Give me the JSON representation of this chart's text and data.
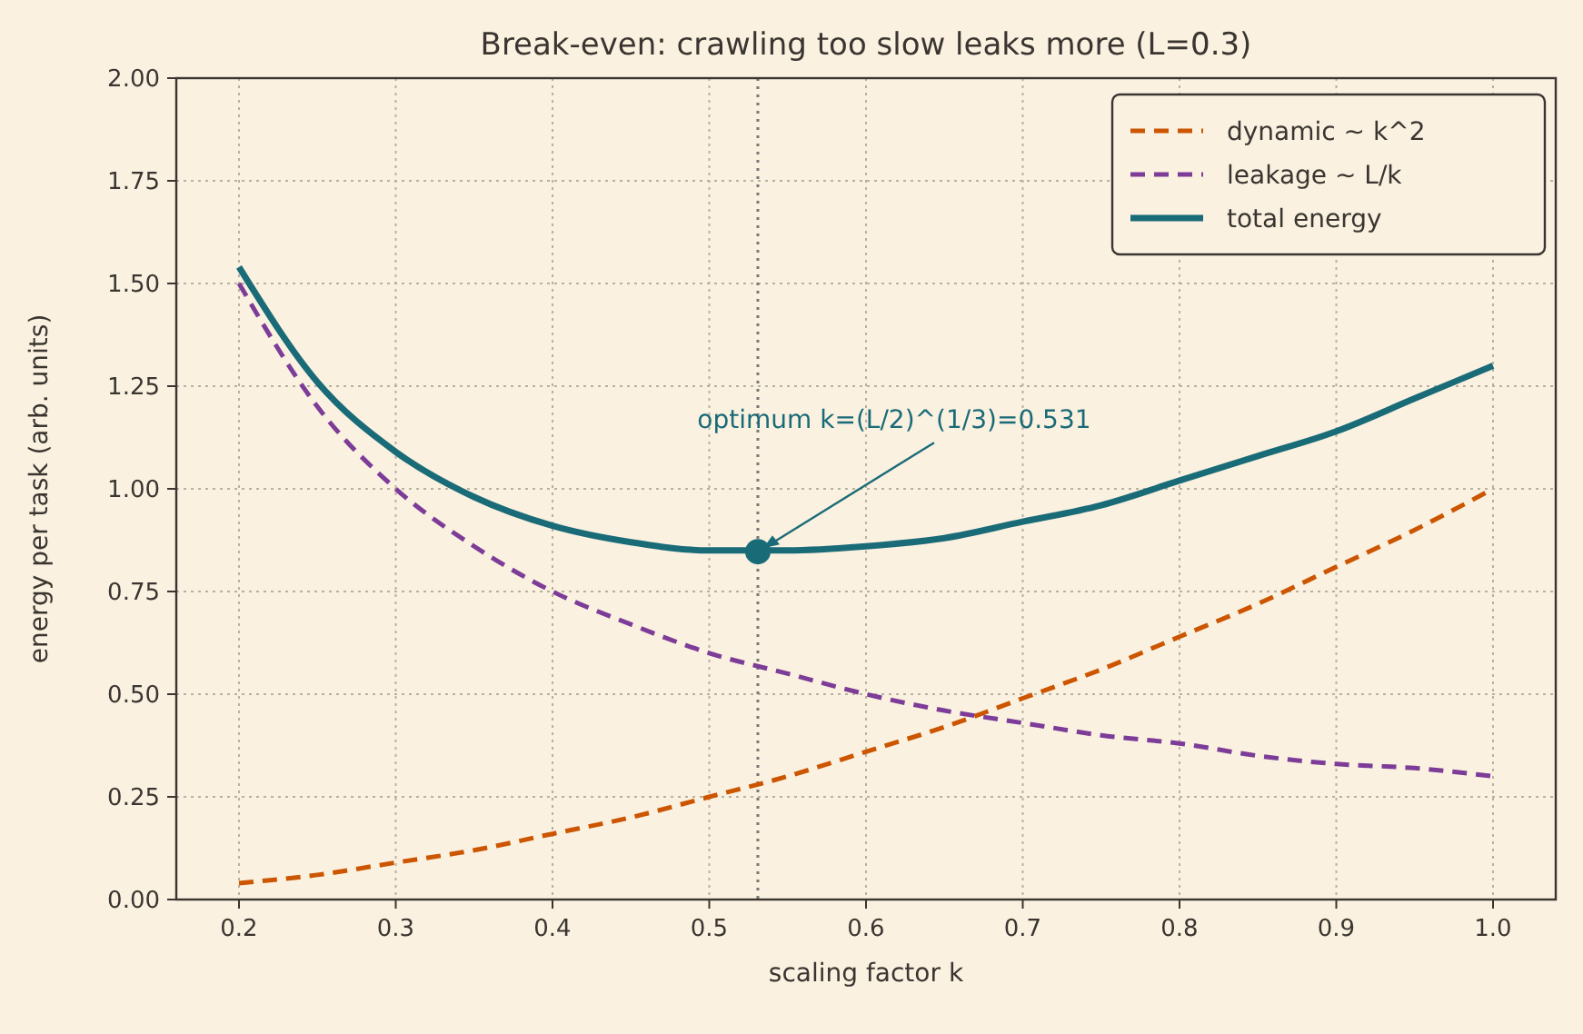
{
  "chart_data": {
    "type": "line",
    "title": "Break-even: crawling too slow leaks more (L=0.3)",
    "xlabel": "scaling factor  k",
    "ylabel": "energy per task (arb. units)",
    "x": [
      0.2,
      0.25,
      0.3,
      0.35,
      0.4,
      0.45,
      0.5,
      0.55,
      0.6,
      0.65,
      0.7,
      0.75,
      0.8,
      0.85,
      0.9,
      0.95,
      1.0
    ],
    "series": [
      {
        "name": "dynamic  ~ k^2",
        "color": "#cc5500",
        "line_style": "dashed",
        "values": [
          0.04,
          0.06,
          0.09,
          0.12,
          0.16,
          0.2,
          0.25,
          0.3,
          0.36,
          0.42,
          0.49,
          0.56,
          0.64,
          0.72,
          0.81,
          0.9,
          1.0
        ]
      },
      {
        "name": "leakage  ~ L/k",
        "color": "#7d3c98",
        "line_style": "dashed",
        "values": [
          1.5,
          1.2,
          1.0,
          0.86,
          0.75,
          0.67,
          0.6,
          0.55,
          0.5,
          0.46,
          0.43,
          0.4,
          0.38,
          0.35,
          0.33,
          0.32,
          0.3
        ]
      },
      {
        "name": "total energy",
        "color": "#1a6b78",
        "line_style": "solid",
        "values": [
          1.54,
          1.26,
          1.09,
          0.98,
          0.91,
          0.87,
          0.85,
          0.85,
          0.86,
          0.88,
          0.92,
          0.96,
          1.02,
          1.08,
          1.14,
          1.22,
          1.3
        ]
      },
      {
        "type": "scatter",
        "color": "#1a6b78",
        "marker": "circle",
        "x": [
          0.531
        ],
        "values": [
          0.847
        ]
      }
    ],
    "xlim": [
      0.16,
      1.04
    ],
    "ylim": [
      0,
      2
    ],
    "xticks": [
      0.2,
      0.3,
      0.4,
      0.5,
      0.6,
      0.7,
      0.8,
      0.9,
      {
        "value": 1.0,
        "label": "1.0"
      }
    ],
    "yticks": [
      {
        "value": 0,
        "label": "0.00"
      },
      {
        "value": 0.25,
        "label": "0.25"
      },
      {
        "value": 0.5,
        "label": "0.50"
      },
      {
        "value": 0.75,
        "label": "0.75"
      },
      {
        "value": 1,
        "label": "1.00"
      },
      {
        "value": 1.25,
        "label": "1.25"
      },
      {
        "value": 1.5,
        "label": "1.50"
      },
      {
        "value": 1.75,
        "label": "1.75"
      },
      {
        "value": 2,
        "label": "2.00"
      }
    ],
    "ref_lines": [
      {
        "axis": "x",
        "value": 0.531,
        "color": "#777777",
        "line_style": "dotted"
      }
    ],
    "annotations": [
      {
        "text": "optimum k=(L/2)^(1/3)=0.531",
        "x": 0.531,
        "y": 0.847
      }
    ],
    "grid": true,
    "legend": "top right"
  }
}
